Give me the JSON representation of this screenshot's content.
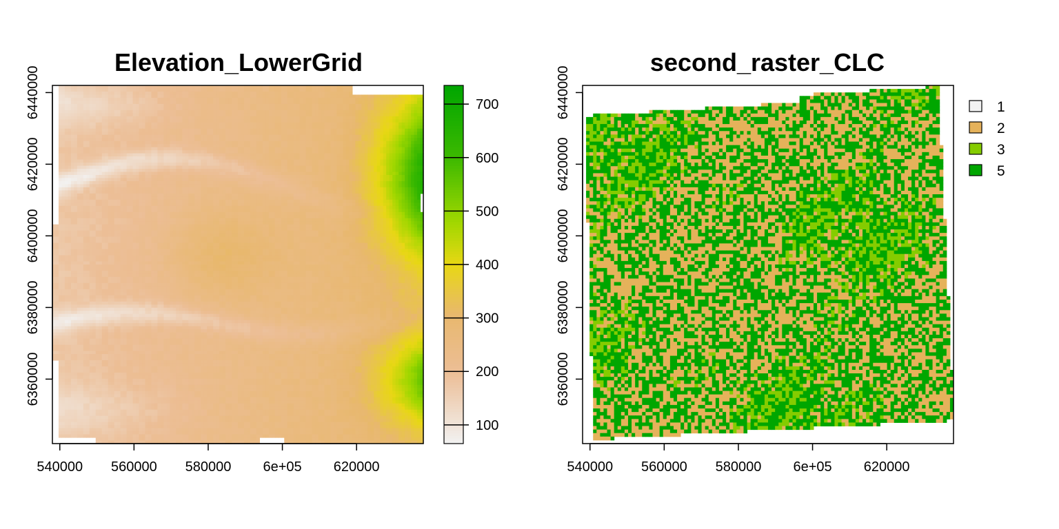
{
  "chart_data": [
    {
      "type": "heatmap",
      "title": "Elevation_LowerGrid",
      "xlabel": "",
      "ylabel": "",
      "xlim": [
        538000,
        638000
      ],
      "ylim": [
        6342000,
        6442000
      ],
      "x_ticks": [
        540000,
        560000,
        580000,
        600000,
        620000
      ],
      "x_tick_labels": [
        "540000",
        "560000",
        "580000",
        "6e+05",
        "620000"
      ],
      "y_ticks": [
        6360000,
        6380000,
        6400000,
        6420000,
        6440000
      ],
      "y_tick_labels": [
        "6360000",
        "6380000",
        "6400000",
        "6420000",
        "6440000"
      ],
      "colorbar": {
        "range": [
          65,
          735
        ],
        "ticks": [
          100,
          200,
          300,
          400,
          500,
          600,
          700
        ],
        "tick_labels": [
          "100",
          "200",
          "300",
          "400",
          "500",
          "600",
          "700"
        ]
      },
      "colors": {
        "low": "#f2f2f2",
        "mid_low": "#ebb98f",
        "mid": "#e6c86e",
        "high": "#e8e600",
        "top": "#00a600"
      },
      "legend": "right (continuous colorbar)"
    },
    {
      "type": "heatmap",
      "title": "second_raster_CLC",
      "xlabel": "",
      "ylabel": "",
      "xlim": [
        538000,
        638000
      ],
      "ylim": [
        6342000,
        6442000
      ],
      "x_ticks": [
        540000,
        560000,
        580000,
        600000,
        620000
      ],
      "x_tick_labels": [
        "540000",
        "560000",
        "580000",
        "6e+05",
        "620000"
      ],
      "y_ticks": [
        6360000,
        6380000,
        6400000,
        6420000,
        6440000
      ],
      "y_tick_labels": [
        "6360000",
        "6380000",
        "6400000",
        "6420000",
        "6440000"
      ],
      "legend": "top-right",
      "categories": [
        {
          "label": "1",
          "color": "#f2f2f2"
        },
        {
          "label": "2",
          "color": "#e5b25b"
        },
        {
          "label": "3",
          "color": "#85cc00"
        },
        {
          "label": "5",
          "color": "#00a600"
        }
      ]
    }
  ]
}
